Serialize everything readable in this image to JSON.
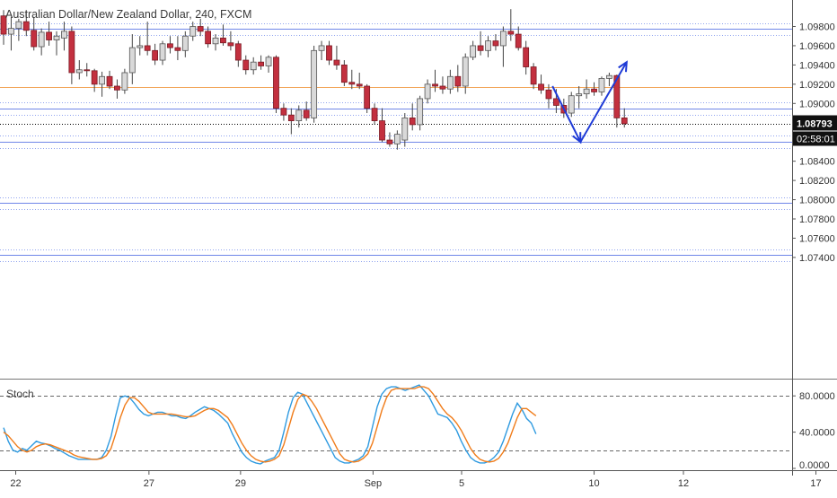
{
  "chart_data": {
    "type": "candlestick",
    "title": "Australian Dollar/New Zealand Dollar, 240, FXCM",
    "price_axis": {
      "min": 1.072,
      "max": 1.0998,
      "ticks": [
        "1.09800",
        "1.09600",
        "1.09400",
        "1.09200",
        "1.09000",
        "1.08600",
        "1.08400",
        "1.08200",
        "1.08000",
        "1.07800",
        "1.07600",
        "1.07400"
      ],
      "current_price": "1.08793",
      "countdown": "02:58:01"
    },
    "time_axis": {
      "labels": [
        {
          "text": "22",
          "bar": 1.6
        },
        {
          "text": "27",
          "bar": 19.2
        },
        {
          "text": "29",
          "bar": 31.3
        },
        {
          "text": "Sep",
          "bar": 48.8
        },
        {
          "text": "5",
          "bar": 60.5
        },
        {
          "text": "10",
          "bar": 78.0
        },
        {
          "text": "12",
          "bar": 89.8
        },
        {
          "text": "17",
          "bar": 107.3
        }
      ],
      "total_bars": 109
    },
    "horizontal_levels": [
      {
        "price": 1.09832,
        "color": "#8fa3ef",
        "style": "dotted"
      },
      {
        "price": 1.09775,
        "color": "#6f86e8",
        "style": "solid"
      },
      {
        "price": 1.0971,
        "color": "#8fa3ef",
        "style": "dotted"
      },
      {
        "price": 1.0917,
        "color": "#f2a65a",
        "style": "solid"
      },
      {
        "price": 1.0901,
        "color": "#8fa3ef",
        "style": "dotted"
      },
      {
        "price": 1.08945,
        "color": "#6f86e8",
        "style": "solid"
      },
      {
        "price": 1.0888,
        "color": "#8fa3ef",
        "style": "dotted"
      },
      {
        "price": 1.08793,
        "color": "#000000",
        "style": "dotted"
      },
      {
        "price": 1.0867,
        "color": "#8fa3ef",
        "style": "dotted"
      },
      {
        "price": 1.08605,
        "color": "#6f86e8",
        "style": "solid"
      },
      {
        "price": 1.08535,
        "color": "#8fa3ef",
        "style": "dotted"
      },
      {
        "price": 1.08025,
        "color": "#8fa3ef",
        "style": "dotted"
      },
      {
        "price": 1.07965,
        "color": "#6f86e8",
        "style": "solid"
      },
      {
        "price": 1.079,
        "color": "#8fa3ef",
        "style": "dotted"
      },
      {
        "price": 1.07485,
        "color": "#8fa3ef",
        "style": "dotted"
      },
      {
        "price": 1.07425,
        "color": "#6f86e8",
        "style": "solid"
      },
      {
        "price": 1.07365,
        "color": "#8fa3ef",
        "style": "dotted"
      }
    ],
    "candles": [
      [
        0,
        1.0991,
        1.0997,
        1.0961,
        1.0972
      ],
      [
        1,
        1.0972,
        1.099,
        1.0955,
        1.0978
      ],
      [
        2,
        1.0978,
        1.0988,
        1.0965,
        1.0985
      ],
      [
        3,
        1.0985,
        1.0997,
        1.097,
        1.0976
      ],
      [
        4,
        1.0976,
        1.099,
        1.0955,
        1.0959
      ],
      [
        5,
        1.0959,
        1.0978,
        1.095,
        1.0974
      ],
      [
        6,
        1.0974,
        1.0985,
        1.096,
        1.0966
      ],
      [
        7,
        1.0966,
        1.0975,
        1.095,
        1.097
      ],
      [
        8,
        1.0968,
        1.0985,
        1.0955,
        1.0975
      ],
      [
        9,
        1.0975,
        1.098,
        1.092,
        1.0932
      ],
      [
        10,
        1.0932,
        1.0945,
        1.0925,
        1.0935
      ],
      [
        11,
        1.0935,
        1.0942,
        1.0928,
        1.0934
      ],
      [
        12,
        1.0934,
        1.0936,
        1.0912,
        1.092
      ],
      [
        13,
        1.092,
        1.0933,
        1.0907,
        1.0928
      ],
      [
        14,
        1.0928,
        1.0934,
        1.0915,
        1.0918
      ],
      [
        15,
        1.0918,
        1.0925,
        1.0905,
        1.0914
      ],
      [
        16,
        1.0914,
        1.0936,
        1.091,
        1.0932
      ],
      [
        17,
        1.0932,
        1.0972,
        1.092,
        1.0958
      ],
      [
        18,
        1.0958,
        1.097,
        1.095,
        1.096
      ],
      [
        19,
        1.096,
        1.0985,
        1.095,
        1.0955
      ],
      [
        20,
        1.0955,
        1.0962,
        1.094,
        1.0945
      ],
      [
        21,
        1.0945,
        1.0965,
        1.094,
        1.0962
      ],
      [
        22,
        1.0962,
        1.097,
        1.0952,
        1.0958
      ],
      [
        23,
        1.0958,
        1.097,
        1.0945,
        1.0955
      ],
      [
        24,
        1.0955,
        1.0975,
        1.0948,
        1.097
      ],
      [
        25,
        1.097,
        1.0985,
        1.0965,
        1.098
      ],
      [
        26,
        1.098,
        1.0988,
        1.097,
        1.0975
      ],
      [
        27,
        1.0975,
        1.098,
        1.0958,
        1.0962
      ],
      [
        28,
        1.0962,
        1.0972,
        1.0955,
        1.0968
      ],
      [
        29,
        1.0968,
        1.0982,
        1.096,
        1.0963
      ],
      [
        30,
        1.0963,
        1.0975,
        1.0955,
        1.096
      ],
      [
        31,
        1.0962,
        1.0965,
        1.0938,
        1.0945
      ],
      [
        32,
        1.0945,
        1.095,
        1.093,
        1.0935
      ],
      [
        33,
        1.0935,
        1.0948,
        1.093,
        1.0943
      ],
      [
        34,
        1.0943,
        1.095,
        1.0935,
        1.0939
      ],
      [
        35,
        1.0939,
        1.095,
        1.0932,
        1.0948
      ],
      [
        36,
        1.0948,
        1.095,
        1.089,
        1.0895
      ],
      [
        37,
        1.0895,
        1.09,
        1.0882,
        1.0888
      ],
      [
        38,
        1.0888,
        1.0895,
        1.0868,
        1.0882
      ],
      [
        39,
        1.0882,
        1.0898,
        1.0875,
        1.0893
      ],
      [
        40,
        1.0893,
        1.0902,
        1.0882,
        1.0885
      ],
      [
        41,
        1.0885,
        1.096,
        1.088,
        1.0955
      ],
      [
        42,
        1.0955,
        1.0965,
        1.0945,
        1.096
      ],
      [
        43,
        1.096,
        1.0965,
        1.094,
        1.0945
      ],
      [
        44,
        1.0945,
        1.096,
        1.0935,
        1.094
      ],
      [
        45,
        1.094,
        1.0945,
        1.0918,
        1.0922
      ],
      [
        46,
        1.0922,
        1.0935,
        1.0915,
        1.092
      ],
      [
        47,
        1.092,
        1.0932,
        1.0915,
        1.0918
      ],
      [
        48,
        1.0918,
        1.092,
        1.089,
        1.0895
      ],
      [
        49,
        1.0895,
        1.09,
        1.0878,
        1.0882
      ],
      [
        50,
        1.0882,
        1.0895,
        1.086,
        1.0862
      ],
      [
        51,
        1.0862,
        1.087,
        1.0855,
        1.0858
      ],
      [
        52,
        1.0858,
        1.0872,
        1.0852,
        1.0868
      ],
      [
        53,
        1.0862,
        1.089,
        1.0855,
        1.0885
      ],
      [
        54,
        1.0885,
        1.09,
        1.0872,
        1.0878
      ],
      [
        55,
        1.0878,
        1.0908,
        1.0872,
        1.0905
      ],
      [
        56,
        1.0905,
        1.0925,
        1.09,
        1.092
      ],
      [
        57,
        1.092,
        1.0935,
        1.0912,
        1.0918
      ],
      [
        58,
        1.0918,
        1.0928,
        1.091,
        1.0915
      ],
      [
        59,
        1.0915,
        1.0935,
        1.091,
        1.0928
      ],
      [
        60,
        1.0928,
        1.094,
        1.0912,
        1.0918
      ],
      [
        61,
        1.0918,
        1.0952,
        1.091,
        1.0948
      ],
      [
        62,
        1.0948,
        1.0965,
        1.0945,
        1.096
      ],
      [
        63,
        1.096,
        1.0975,
        1.095,
        1.0955
      ],
      [
        64,
        1.0955,
        1.097,
        1.0948,
        1.0965
      ],
      [
        65,
        1.0965,
        1.0972,
        1.0955,
        1.096
      ],
      [
        66,
        1.096,
        1.098,
        1.0938,
        1.0975
      ],
      [
        67,
        1.0975,
        1.0998,
        1.0965,
        1.0972
      ],
      [
        68,
        1.0972,
        1.098,
        1.0955,
        1.0958
      ],
      [
        69,
        1.0958,
        1.0965,
        1.093,
        1.0938
      ],
      [
        70,
        1.0938,
        1.0942,
        1.0915,
        1.092
      ],
      [
        71,
        1.092,
        1.093,
        1.091,
        1.0914
      ],
      [
        72,
        1.0914,
        1.092,
        1.0895,
        1.0905
      ],
      [
        73,
        1.0905,
        1.0915,
        1.089,
        1.0898
      ],
      [
        74,
        1.0898,
        1.0905,
        1.0885,
        1.089
      ],
      [
        75,
        1.089,
        1.0912,
        1.0886,
        1.0908
      ],
      [
        76,
        1.0908,
        1.0918,
        1.0895,
        1.091
      ],
      [
        77,
        1.091,
        1.0925,
        1.0905,
        1.0915
      ],
      [
        78,
        1.0915,
        1.0922,
        1.0908,
        1.0912
      ],
      [
        79,
        1.0912,
        1.0928,
        1.0908,
        1.0926
      ],
      [
        80,
        1.0926,
        1.0932,
        1.0918,
        1.0929
      ],
      [
        81,
        1.0929,
        1.093,
        1.0875,
        1.0885
      ],
      [
        82,
        1.0885,
        1.0895,
        1.0875,
        1.0879
      ]
    ],
    "drawing_arrow": [
      [
        72.5,
        1.0918
      ],
      [
        76.2,
        1.086
      ],
      [
        82.3,
        1.0943
      ]
    ],
    "stochastic": {
      "label": "Stoch",
      "ticks": [
        "80.0000",
        "40.0000",
        "0.0000"
      ],
      "levels": [
        80,
        20
      ],
      "k": [
        45,
        30,
        20,
        18,
        22,
        20,
        25,
        30,
        28,
        27,
        25,
        22,
        20,
        17,
        14,
        12,
        10,
        10,
        10,
        10,
        10,
        12,
        20,
        35,
        58,
        78,
        80,
        78,
        72,
        65,
        60,
        58,
        60,
        62,
        62,
        60,
        58,
        58,
        56,
        55,
        58,
        62,
        65,
        68,
        66,
        64,
        60,
        55,
        50,
        38,
        28,
        18,
        12,
        8,
        6,
        5,
        8,
        10,
        12,
        20,
        40,
        62,
        78,
        84,
        82,
        72,
        62,
        52,
        42,
        32,
        22,
        12,
        8,
        6,
        6,
        8,
        10,
        14,
        24,
        46,
        68,
        82,
        88,
        90,
        90,
        88,
        86,
        88,
        90,
        92,
        86,
        80,
        70,
        60,
        58,
        56,
        50,
        42,
        30,
        20,
        12,
        8,
        6,
        6,
        8,
        12,
        18,
        30,
        45,
        60,
        72,
        65,
        55,
        50,
        38
      ],
      "d": [
        40,
        36,
        30,
        24,
        20,
        18,
        20,
        24,
        26,
        27,
        26,
        24,
        22,
        20,
        18,
        15,
        13,
        12,
        11,
        10,
        10,
        11,
        14,
        22,
        38,
        56,
        70,
        78,
        78,
        74,
        68,
        62,
        60,
        60,
        60,
        60,
        60,
        59,
        58,
        57,
        57,
        58,
        61,
        64,
        66,
        66,
        64,
        60,
        56,
        48,
        38,
        28,
        20,
        14,
        10,
        8,
        7,
        8,
        10,
        14,
        26,
        44,
        62,
        76,
        82,
        80,
        74,
        66,
        56,
        46,
        36,
        26,
        16,
        10,
        8,
        7,
        8,
        11,
        16,
        28,
        46,
        64,
        78,
        86,
        88,
        88,
        88,
        88,
        88,
        90,
        90,
        88,
        82,
        74,
        66,
        60,
        56,
        50,
        42,
        32,
        22,
        15,
        10,
        8,
        7,
        8,
        11,
        18,
        28,
        42,
        56,
        66,
        66,
        62,
        58
      ]
    }
  }
}
